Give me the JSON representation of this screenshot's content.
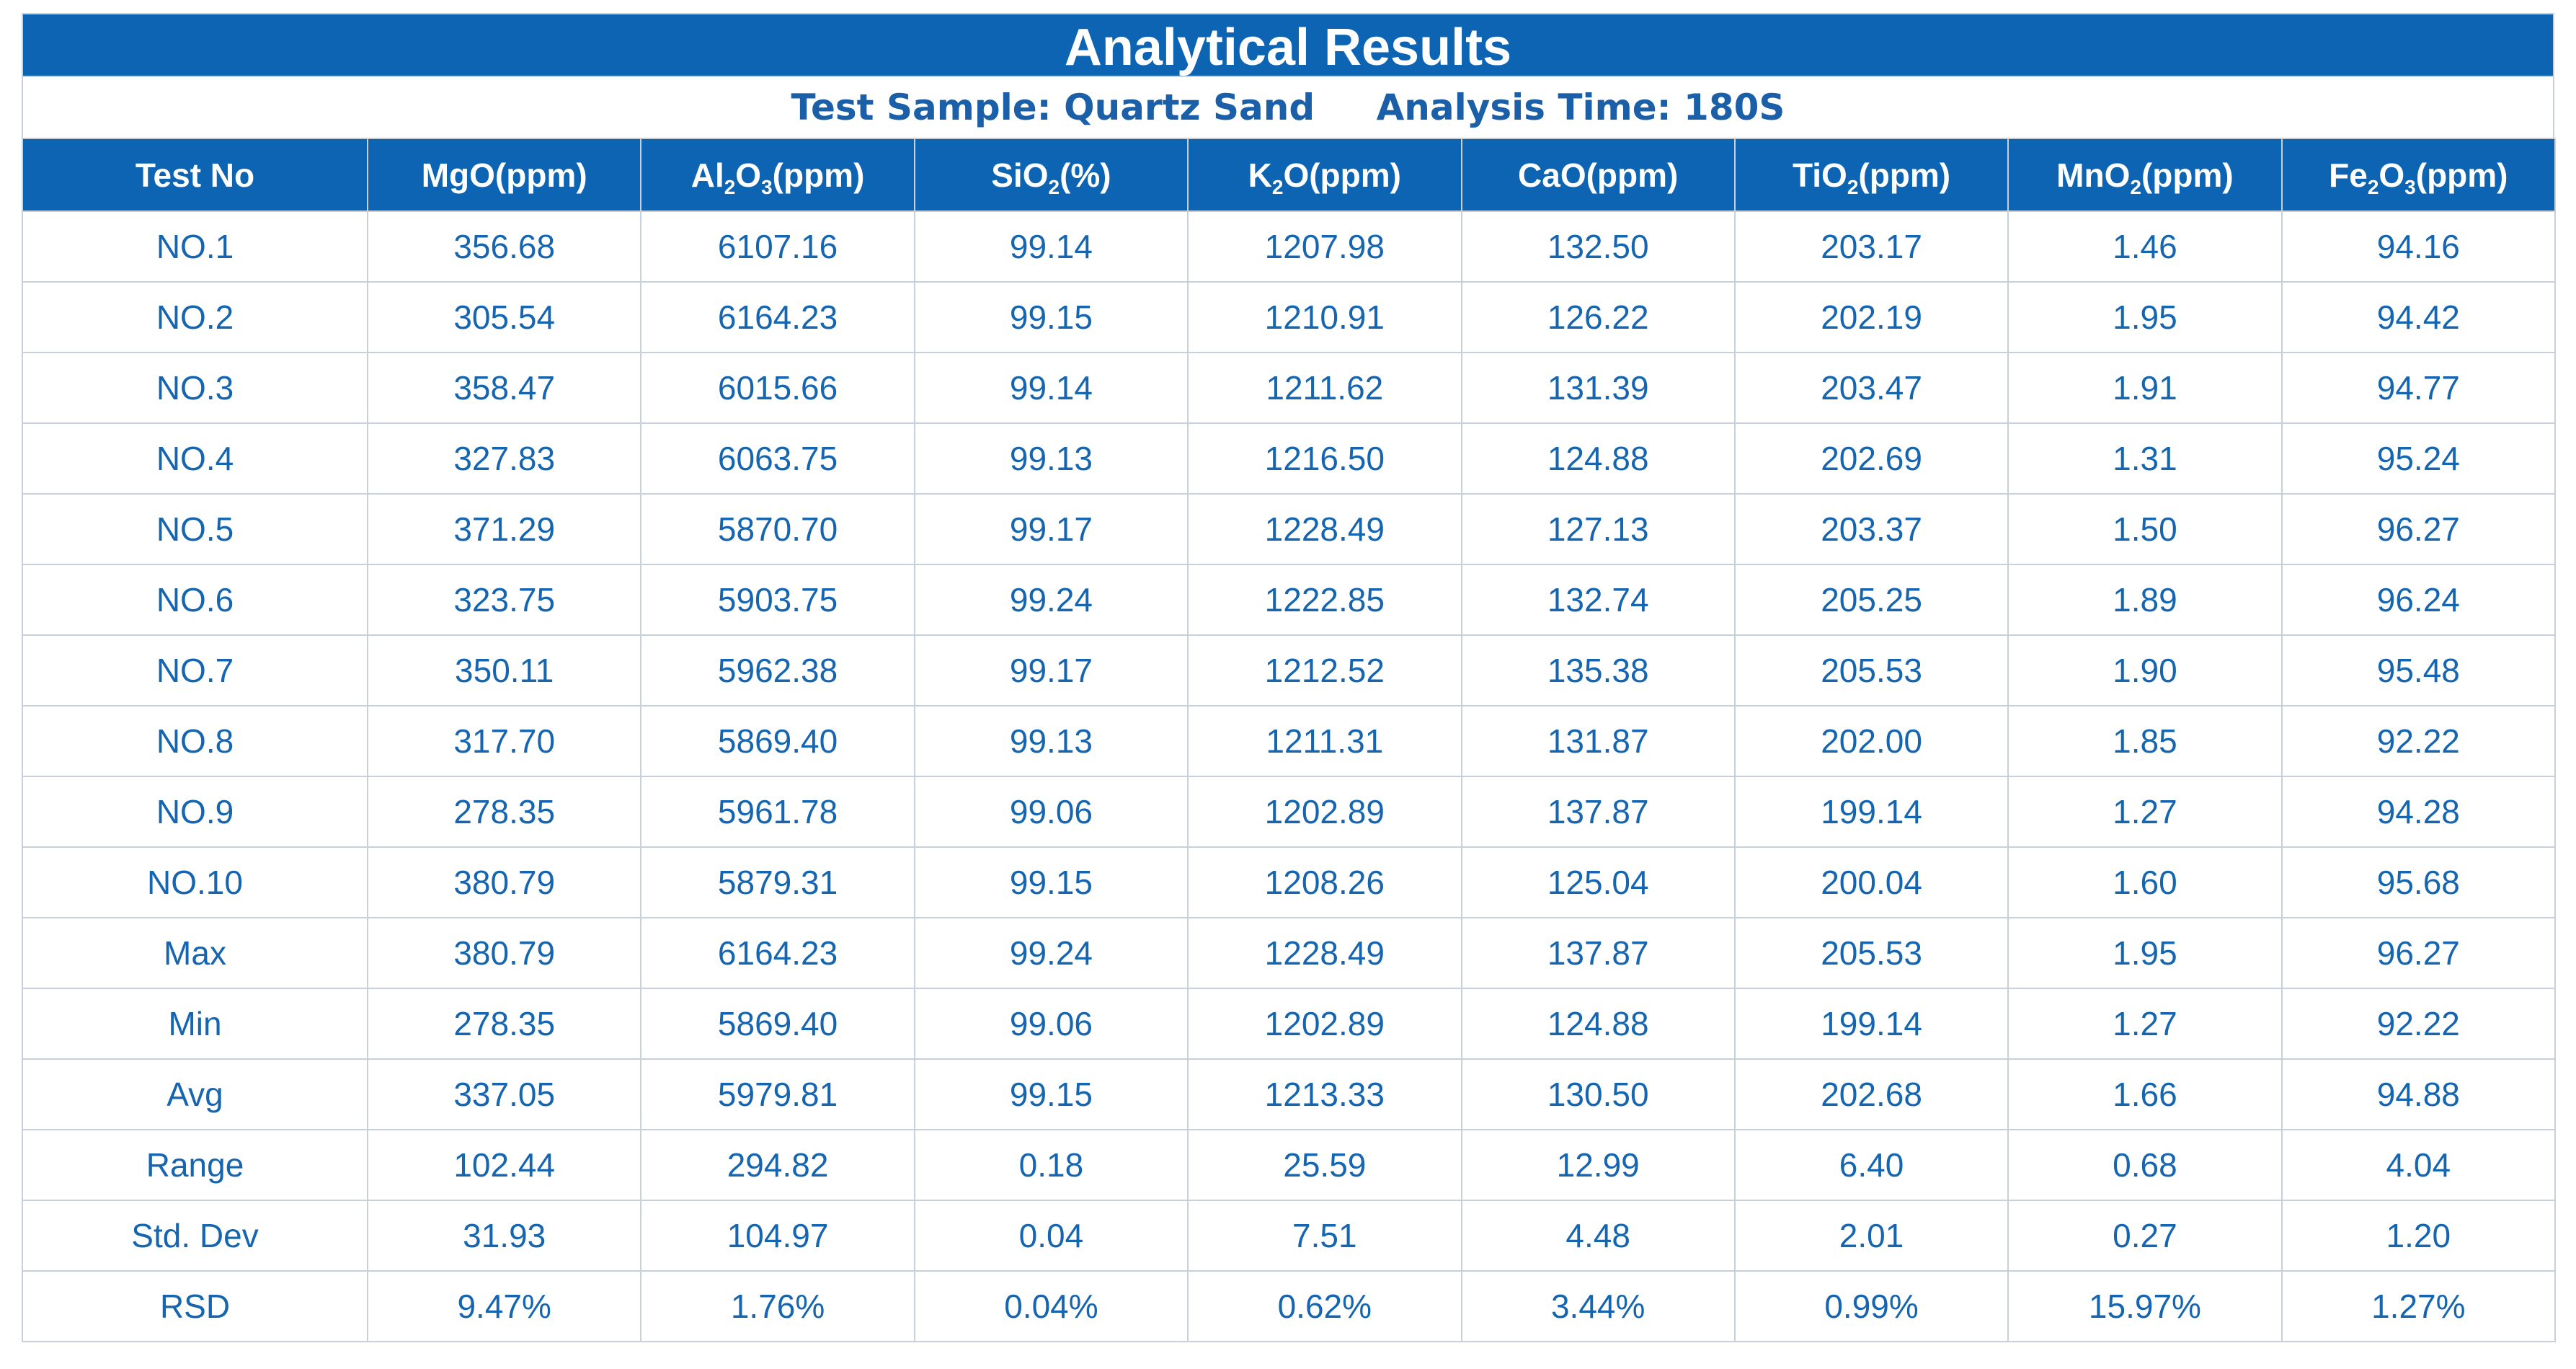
{
  "title": "Analytical Results",
  "subtitle": [
    "Test Sample: Quartz Sand",
    "Analysis Time: 180S"
  ],
  "table": {
    "columns": [
      [
        "Test No"
      ],
      [
        "MgO(ppm)"
      ],
      [
        "Al",
        "2",
        "O",
        "3",
        "(ppm)"
      ],
      [
        "SiO",
        "2",
        "(%)"
      ],
      [
        "K",
        "2",
        "O(ppm)"
      ],
      [
        "CaO(ppm)"
      ],
      [
        "TiO",
        "2",
        "(ppm)"
      ],
      [
        "MnO",
        "2",
        "(ppm)"
      ],
      [
        "Fe",
        "2",
        "O",
        "3",
        "(ppm)"
      ]
    ],
    "rows": [
      [
        "NO.1",
        "356.68",
        "6107.16",
        "99.14",
        "1207.98",
        "132.50",
        "203.17",
        "1.46",
        "94.16"
      ],
      [
        "NO.2",
        "305.54",
        "6164.23",
        "99.15",
        "1210.91",
        "126.22",
        "202.19",
        "1.95",
        "94.42"
      ],
      [
        "NO.3",
        "358.47",
        "6015.66",
        "99.14",
        "1211.62",
        "131.39",
        "203.47",
        "1.91",
        "94.77"
      ],
      [
        "NO.4",
        "327.83",
        "6063.75",
        "99.13",
        "1216.50",
        "124.88",
        "202.69",
        "1.31",
        "95.24"
      ],
      [
        "NO.5",
        "371.29",
        "5870.70",
        "99.17",
        "1228.49",
        "127.13",
        "203.37",
        "1.50",
        "96.27"
      ],
      [
        "NO.6",
        "323.75",
        "5903.75",
        "99.24",
        "1222.85",
        "132.74",
        "205.25",
        "1.89",
        "96.24"
      ],
      [
        "NO.7",
        "350.11",
        "5962.38",
        "99.17",
        "1212.52",
        "135.38",
        "205.53",
        "1.90",
        "95.48"
      ],
      [
        "NO.8",
        "317.70",
        "5869.40",
        "99.13",
        "1211.31",
        "131.87",
        "202.00",
        "1.85",
        "92.22"
      ],
      [
        "NO.9",
        "278.35",
        "5961.78",
        "99.06",
        "1202.89",
        "137.87",
        "199.14",
        "1.27",
        "94.28"
      ],
      [
        "NO.10",
        "380.79",
        "5879.31",
        "99.15",
        "1208.26",
        "125.04",
        "200.04",
        "1.60",
        "95.68"
      ],
      [
        "Max",
        "380.79",
        "6164.23",
        "99.24",
        "1228.49",
        "137.87",
        "205.53",
        "1.95",
        "96.27"
      ],
      [
        "Min",
        "278.35",
        "5869.40",
        "99.06",
        "1202.89",
        "124.88",
        "199.14",
        "1.27",
        "92.22"
      ],
      [
        "Avg",
        "337.05",
        "5979.81",
        "99.15",
        "1213.33",
        "130.50",
        "202.68",
        "1.66",
        "94.88"
      ],
      [
        "Range",
        "102.44",
        "294.82",
        "0.18",
        "25.59",
        "12.99",
        "6.40",
        "0.68",
        "4.04"
      ],
      [
        "Std. Dev",
        "31.93",
        "104.97",
        "0.04",
        "7.51",
        "4.48",
        "2.01",
        "0.27",
        "1.20"
      ],
      [
        "RSD",
        "9.47%",
        "1.76%",
        "0.04%",
        "0.62%",
        "3.44%",
        "0.99%",
        "15.97%",
        "1.27%"
      ]
    ]
  }
}
